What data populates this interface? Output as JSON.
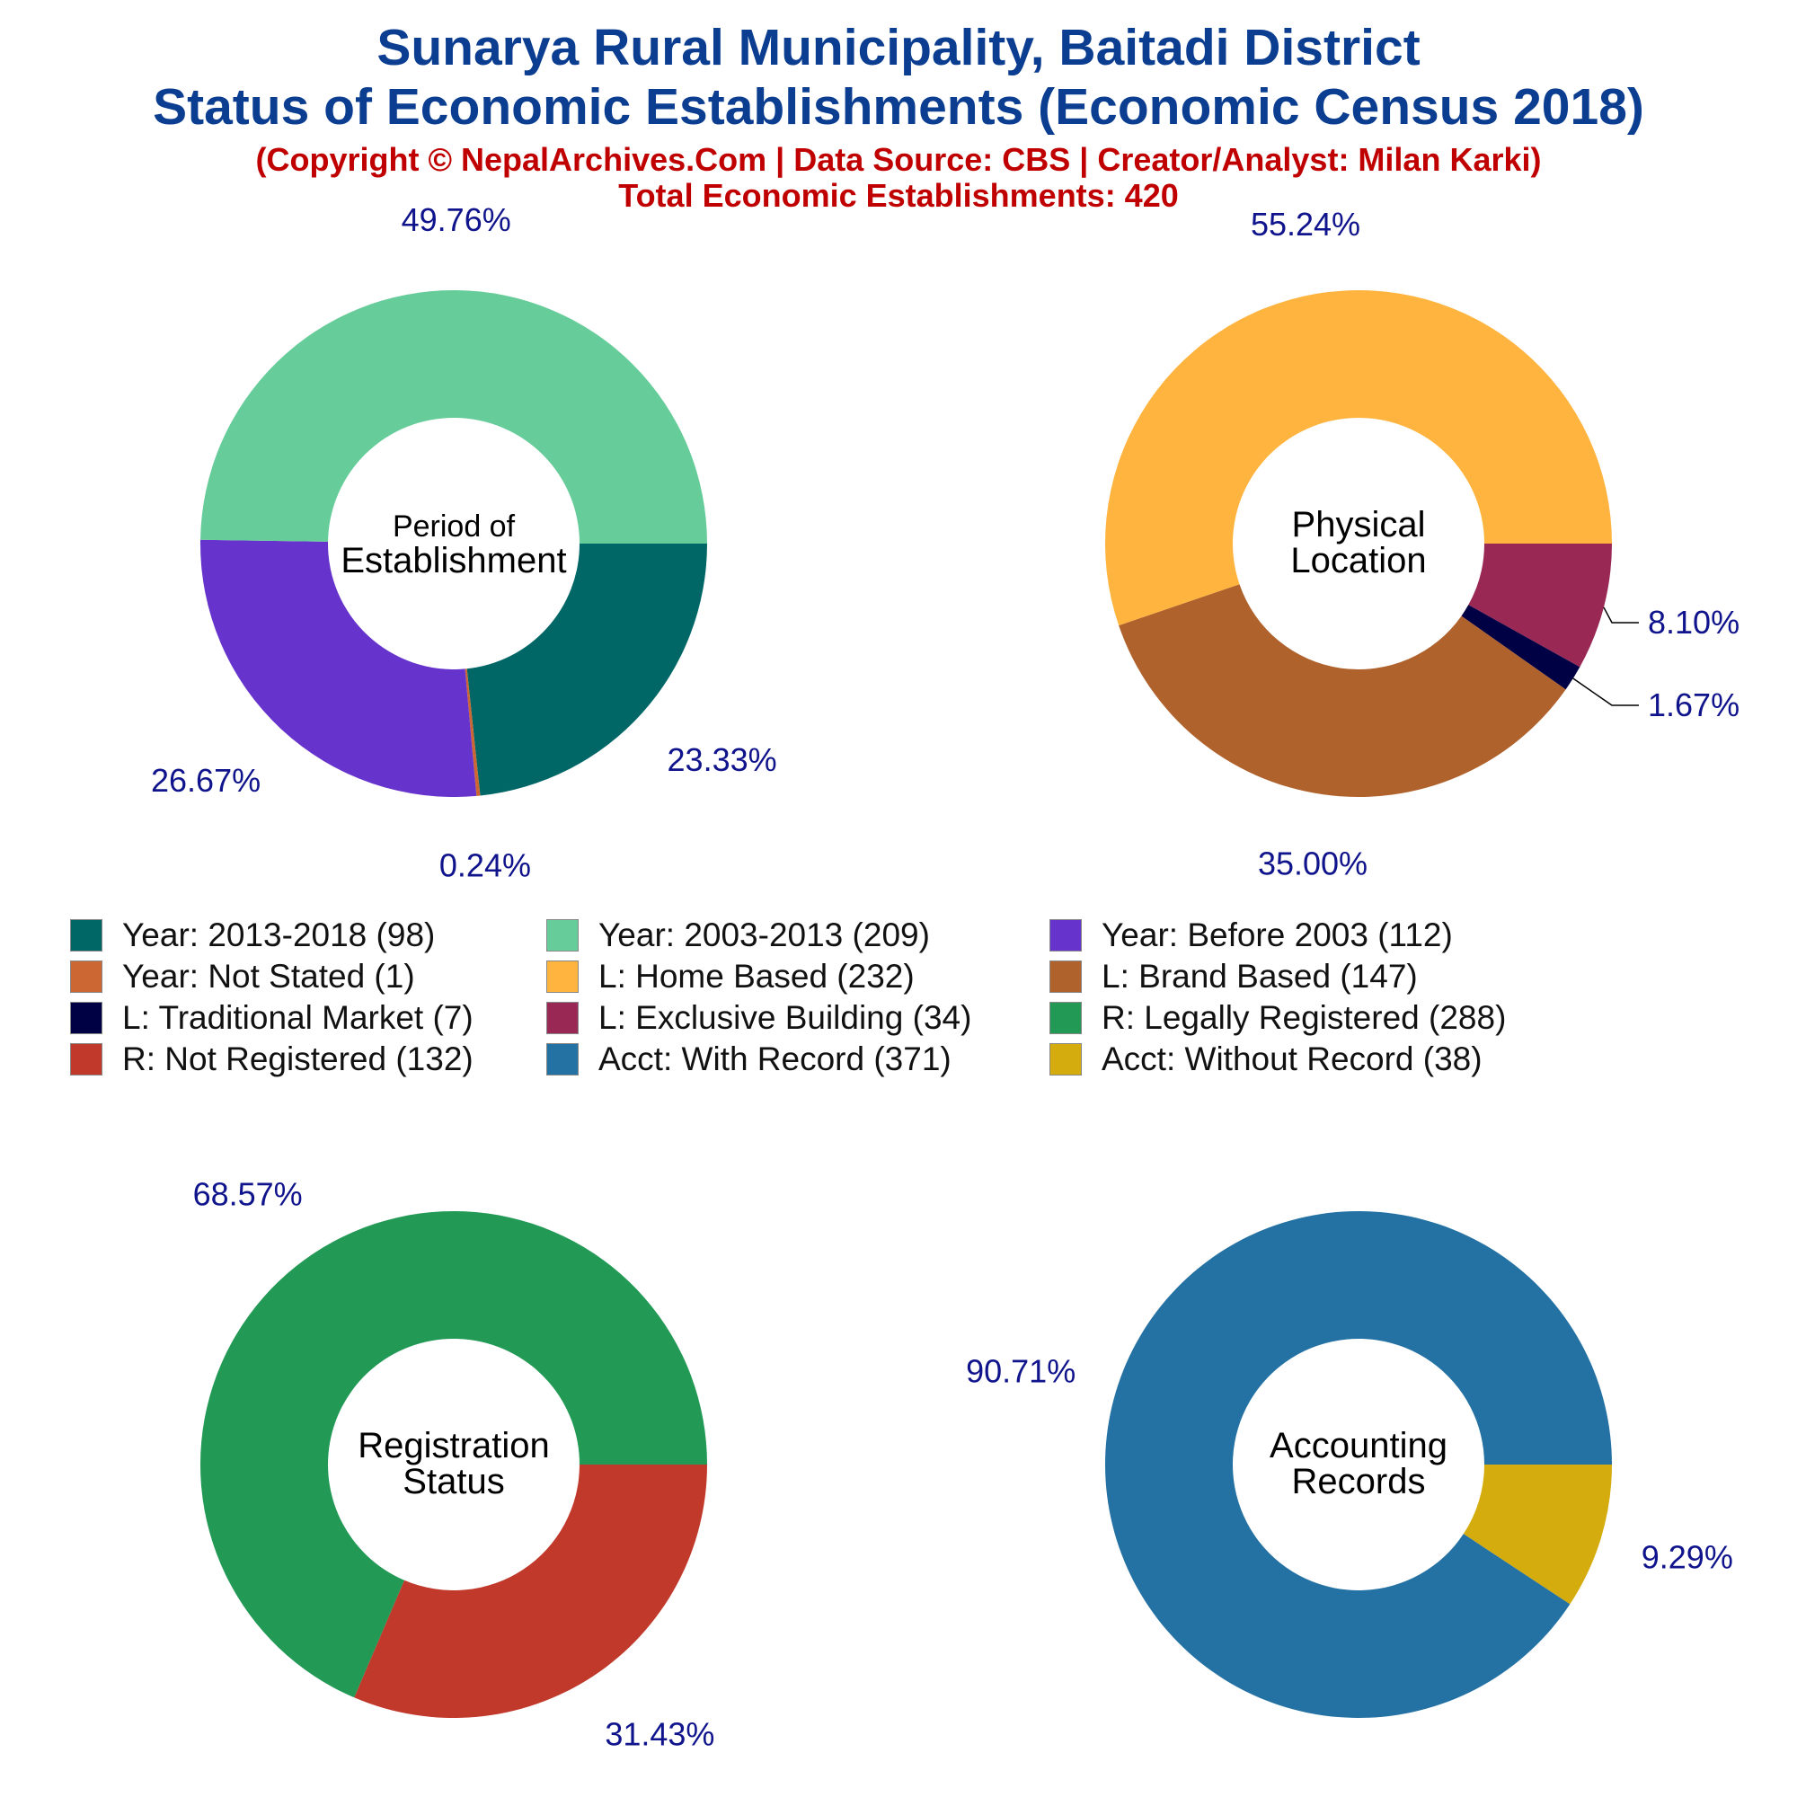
{
  "header": {
    "title_line1": "Sunarya Rural Municipality, Baitadi District",
    "title_line2": "Status of Economic Establishments (Economic Census 2018)",
    "subtitle": "(Copyright © NepalArchives.Com | Data Source: CBS | Creator/Analyst: Milan Karki)",
    "total": "Total Economic Establishments: 420"
  },
  "colors": {
    "label_text": "#10148c",
    "title_text": "#0b3d91",
    "subtitle_text": "#c00000"
  },
  "chart_data": [
    {
      "type": "pie",
      "center_label": [
        "Period of",
        "Establishment"
      ],
      "slices": [
        {
          "name": "Year: 2013-2018",
          "value": 98,
          "label": "23.33%",
          "color": "#006666"
        },
        {
          "name": "Year: Not Stated",
          "value": 1,
          "label": "0.24%",
          "color": "#cc6633"
        },
        {
          "name": "Year: Before 2003",
          "value": 112,
          "label": "26.67%",
          "color": "#6633cc"
        },
        {
          "name": "Year: 2003-2013",
          "value": 209,
          "label": "49.76%",
          "color": "#66cc99"
        }
      ]
    },
    {
      "type": "pie",
      "center_label": [
        "Physical",
        "Location"
      ],
      "slices": [
        {
          "name": "L: Exclusive Building",
          "value": 34,
          "label": "8.10%",
          "color": "#992855"
        },
        {
          "name": "L: Traditional Market",
          "value": 7,
          "label": "1.67%",
          "color": "#000044"
        },
        {
          "name": "L: Brand Based",
          "value": 147,
          "label": "35.00%",
          "color": "#b0622d"
        },
        {
          "name": "L: Home Based",
          "value": 232,
          "label": "55.24%",
          "color": "#ffb43f"
        }
      ]
    },
    {
      "type": "pie",
      "center_label": [
        "Registration",
        "Status"
      ],
      "slices": [
        {
          "name": "R: Not Registered",
          "value": 132,
          "label": "31.43%",
          "color": "#c0392b"
        },
        {
          "name": "R: Legally Registered",
          "value": 288,
          "label": "68.57%",
          "color": "#229955"
        }
      ]
    },
    {
      "type": "pie",
      "center_label": [
        "Accounting",
        "Records"
      ],
      "slices": [
        {
          "name": "Acct: Without Record",
          "value": 38,
          "label": "9.29%",
          "color": "#d4ac0d"
        },
        {
          "name": "Acct: With Record",
          "value": 371,
          "label": "90.71%",
          "color": "#2471a3"
        }
      ]
    }
  ],
  "legend": [
    {
      "label": "Year: 2013-2018 (98)",
      "color": "#006666"
    },
    {
      "label": "Year: 2003-2013 (209)",
      "color": "#66cc99"
    },
    {
      "label": "Year: Before 2003 (112)",
      "color": "#6633cc"
    },
    {
      "label": "Year: Not Stated (1)",
      "color": "#cc6633"
    },
    {
      "label": "L: Home Based (232)",
      "color": "#ffb43f"
    },
    {
      "label": "L: Brand Based (147)",
      "color": "#b0622d"
    },
    {
      "label": "L: Traditional Market (7)",
      "color": "#000044"
    },
    {
      "label": "L: Exclusive Building (34)",
      "color": "#992855"
    },
    {
      "label": "R: Legally Registered (288)",
      "color": "#229955"
    },
    {
      "label": "R: Not Registered (132)",
      "color": "#c0392b"
    },
    {
      "label": "Acct: With Record (371)",
      "color": "#2471a3"
    },
    {
      "label": "Acct: Without Record (38)",
      "color": "#d4ac0d"
    }
  ]
}
